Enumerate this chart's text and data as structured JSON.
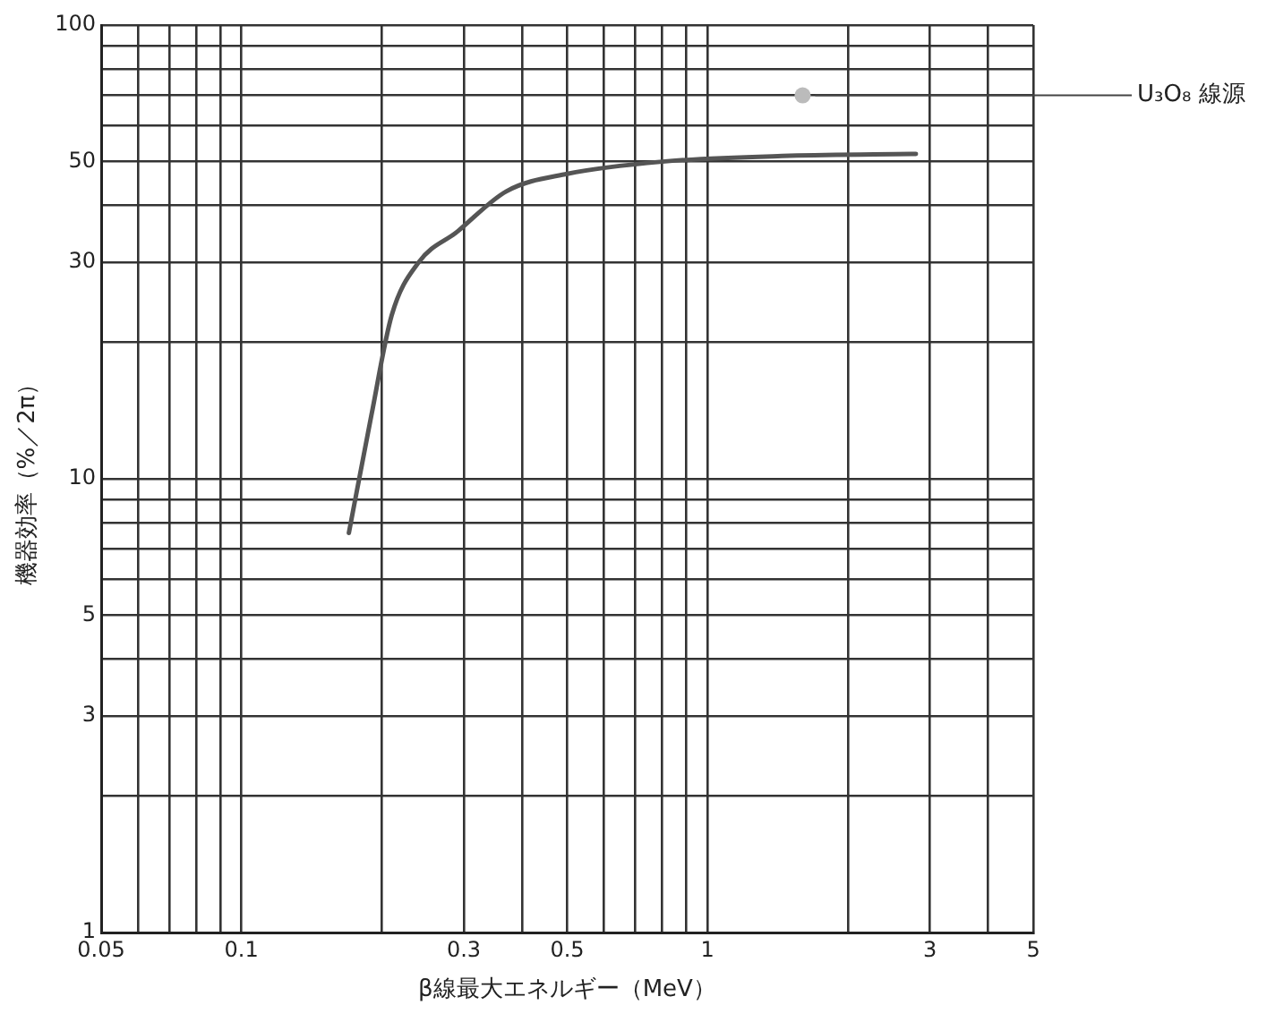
{
  "chart_data": {
    "type": "line",
    "xlabel": "β線最大エネルギー（MeV）",
    "ylabel": "機器効率（%／2π）",
    "log": "xy",
    "grid": true,
    "legend": false,
    "marker": "none",
    "line_style": "solid",
    "xlim": [
      0.05,
      5
    ],
    "ylim": [
      1,
      100
    ],
    "xticks": [
      0.05,
      {
        "value": 0.06,
        "label": null
      },
      {
        "value": 0.07,
        "label": null
      },
      {
        "value": 0.08,
        "label": null
      },
      {
        "value": 0.09,
        "label": null
      },
      0.1,
      {
        "value": 0.2,
        "label": null
      },
      0.3,
      {
        "value": 0.4,
        "label": null
      },
      0.5,
      {
        "value": 0.6,
        "label": null
      },
      {
        "value": 0.7,
        "label": null
      },
      {
        "value": 0.8,
        "label": null
      },
      {
        "value": 0.9,
        "label": null
      },
      1,
      {
        "value": 2,
        "label": null
      },
      3,
      {
        "value": 4,
        "label": null
      },
      5
    ],
    "yticks": [
      1,
      {
        "value": 2,
        "label": null
      },
      3,
      {
        "value": 4,
        "label": null
      },
      5,
      {
        "value": 6,
        "label": null
      },
      {
        "value": 7,
        "label": null
      },
      {
        "value": 8,
        "label": null
      },
      {
        "value": 9,
        "label": null
      },
      10,
      {
        "value": 20,
        "label": null
      },
      30,
      {
        "value": 40,
        "label": null
      },
      50,
      {
        "value": 60,
        "label": null
      },
      {
        "value": 70,
        "label": null
      },
      {
        "value": 80,
        "label": null
      },
      {
        "value": 90,
        "label": null
      },
      100
    ],
    "series": [
      {
        "color": "#555555",
        "x": [
          0.17,
          0.19,
          0.21,
          0.24,
          0.29,
          0.37,
          0.5,
          0.8,
          1.5,
          2.8
        ],
        "values": [
          7.6,
          13.8,
          22.9,
          30,
          35,
          43,
          47,
          50,
          51.5,
          52
        ]
      },
      {
        "type": "scatter",
        "name": "U₃O₈ 線源",
        "color": "#bbbbbb",
        "marker": "circle",
        "x": [
          1.6
        ],
        "values": [
          70
        ]
      }
    ]
  }
}
